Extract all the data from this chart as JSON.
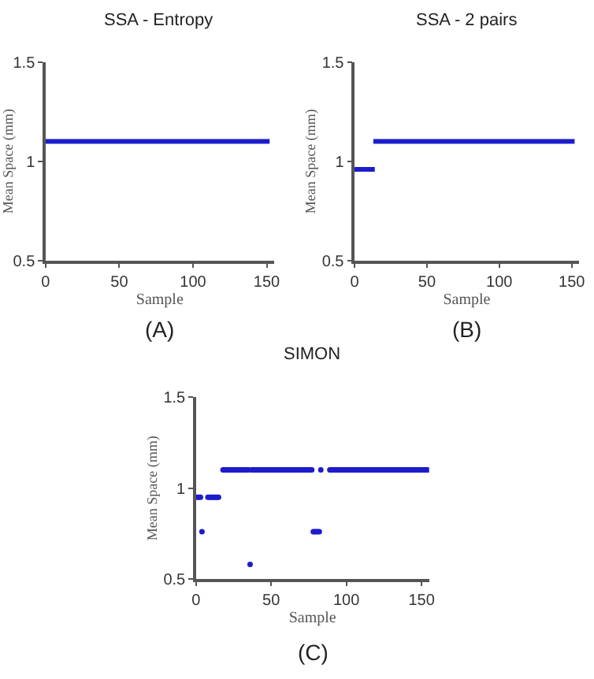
{
  "chart_data": [
    {
      "type": "line",
      "title": "SSA - Entropy",
      "xlabel": "Sample",
      "ylabel": "Mean Space (mm)",
      "xlim": [
        0,
        155
      ],
      "ylim": [
        0.5,
        1.5
      ],
      "xticks": [
        0,
        50,
        100,
        150
      ],
      "yticks": [
        0.5,
        1,
        1.5
      ],
      "annotations": [
        "(A)"
      ],
      "series": [
        {
          "color": "#1c1ccc",
          "x": [
            0,
            152
          ],
          "values": [
            1.1,
            1.1
          ]
        }
      ]
    },
    {
      "type": "line",
      "title": "SSA - 2 pairs",
      "xlabel": "Sample",
      "ylabel": "Mean Space (mm)",
      "xlim": [
        0,
        155
      ],
      "ylim": [
        0.5,
        1.5
      ],
      "xticks": [
        0,
        50,
        100,
        150
      ],
      "yticks": [
        0.5,
        1,
        1.5
      ],
      "annotations": [
        "(B)"
      ],
      "series": [
        {
          "color": "#1c1ccc",
          "x": [
            0,
            14
          ],
          "values": [
            0.96,
            0.96
          ]
        },
        {
          "color": "#1c1ccc",
          "x": [
            13,
            152
          ],
          "values": [
            1.1,
            1.1
          ]
        }
      ]
    },
    {
      "type": "scatter",
      "title": "SIMON",
      "xlabel": "Sample",
      "ylabel": "Mean Space (mm)",
      "xlim": [
        0,
        155
      ],
      "ylim": [
        0.5,
        1.5
      ],
      "xticks": [
        0,
        50,
        100,
        150
      ],
      "yticks": [
        0.5,
        1,
        1.5
      ],
      "annotations": [
        "(C)"
      ],
      "series": [
        {
          "color": "#1c1ccc",
          "x": [
            1,
            2,
            3,
            4,
            8,
            9,
            10,
            11,
            12,
            13,
            14,
            15,
            18,
            19,
            20,
            21,
            22,
            23,
            24,
            25,
            26,
            27,
            28,
            29,
            30,
            31,
            32,
            33,
            34,
            35,
            36,
            37,
            38,
            39,
            40,
            41,
            42,
            43,
            44,
            45,
            46,
            47,
            48,
            49,
            50,
            51,
            52,
            53,
            54,
            55,
            56,
            57,
            58,
            59,
            60,
            61,
            62,
            63,
            64,
            65,
            66,
            67,
            68,
            69,
            70,
            71,
            72,
            73,
            74,
            75,
            76,
            77,
            78,
            79,
            80,
            81,
            82,
            83,
            89,
            90,
            91,
            92,
            93,
            94,
            95,
            96,
            97,
            98,
            99,
            100,
            101,
            102,
            103,
            104,
            105,
            106,
            107,
            108,
            109,
            110,
            111,
            112,
            113,
            114,
            115,
            116,
            117,
            118,
            119,
            120,
            121,
            122,
            123,
            124,
            125,
            126,
            127,
            128,
            129,
            130,
            131,
            132,
            133,
            134,
            135,
            136,
            137,
            138,
            139,
            140,
            141,
            142,
            143,
            144,
            145,
            146,
            147,
            148,
            149,
            150,
            151,
            152,
            153,
            154
          ],
          "values": [
            0.95,
            0.95,
            0.95,
            0.76,
            0.95,
            0.95,
            0.95,
            0.95,
            0.95,
            0.95,
            0.95,
            0.95,
            1.1,
            1.1,
            1.1,
            1.1,
            1.1,
            1.1,
            1.1,
            1.1,
            1.1,
            1.1,
            1.1,
            1.1,
            1.1,
            1.1,
            1.1,
            1.1,
            1.1,
            1.1,
            0.58,
            1.1,
            1.1,
            1.1,
            1.1,
            1.1,
            1.1,
            1.1,
            1.1,
            1.1,
            1.1,
            1.1,
            1.1,
            1.1,
            1.1,
            1.1,
            1.1,
            1.1,
            1.1,
            1.1,
            1.1,
            1.1,
            1.1,
            1.1,
            1.1,
            1.1,
            1.1,
            1.1,
            1.1,
            1.1,
            1.1,
            1.1,
            1.1,
            1.1,
            1.1,
            1.1,
            1.1,
            1.1,
            1.1,
            1.1,
            1.1,
            1.1,
            0.76,
            0.76,
            0.76,
            0.76,
            0.76,
            1.1,
            1.1,
            1.1,
            1.1,
            1.1,
            1.1,
            1.1,
            1.1,
            1.1,
            1.1,
            1.1,
            1.1,
            1.1,
            1.1,
            1.1,
            1.1,
            1.1,
            1.1,
            1.1,
            1.1,
            1.1,
            1.1,
            1.1,
            1.1,
            1.1,
            1.1,
            1.1,
            1.1,
            1.1,
            1.1,
            1.1,
            1.1,
            1.1,
            1.1,
            1.1,
            1.1,
            1.1,
            1.1,
            1.1,
            1.1,
            1.1,
            1.1,
            1.1,
            1.1,
            1.1,
            1.1,
            1.1,
            1.1,
            1.1,
            1.1,
            1.1,
            1.1,
            1.1,
            1.1,
            1.1,
            1.1,
            1.1,
            1.1,
            1.1,
            1.1,
            1.1,
            1.1,
            1.1,
            1.1,
            1.1,
            1.1,
            1.1
          ]
        }
      ]
    }
  ]
}
